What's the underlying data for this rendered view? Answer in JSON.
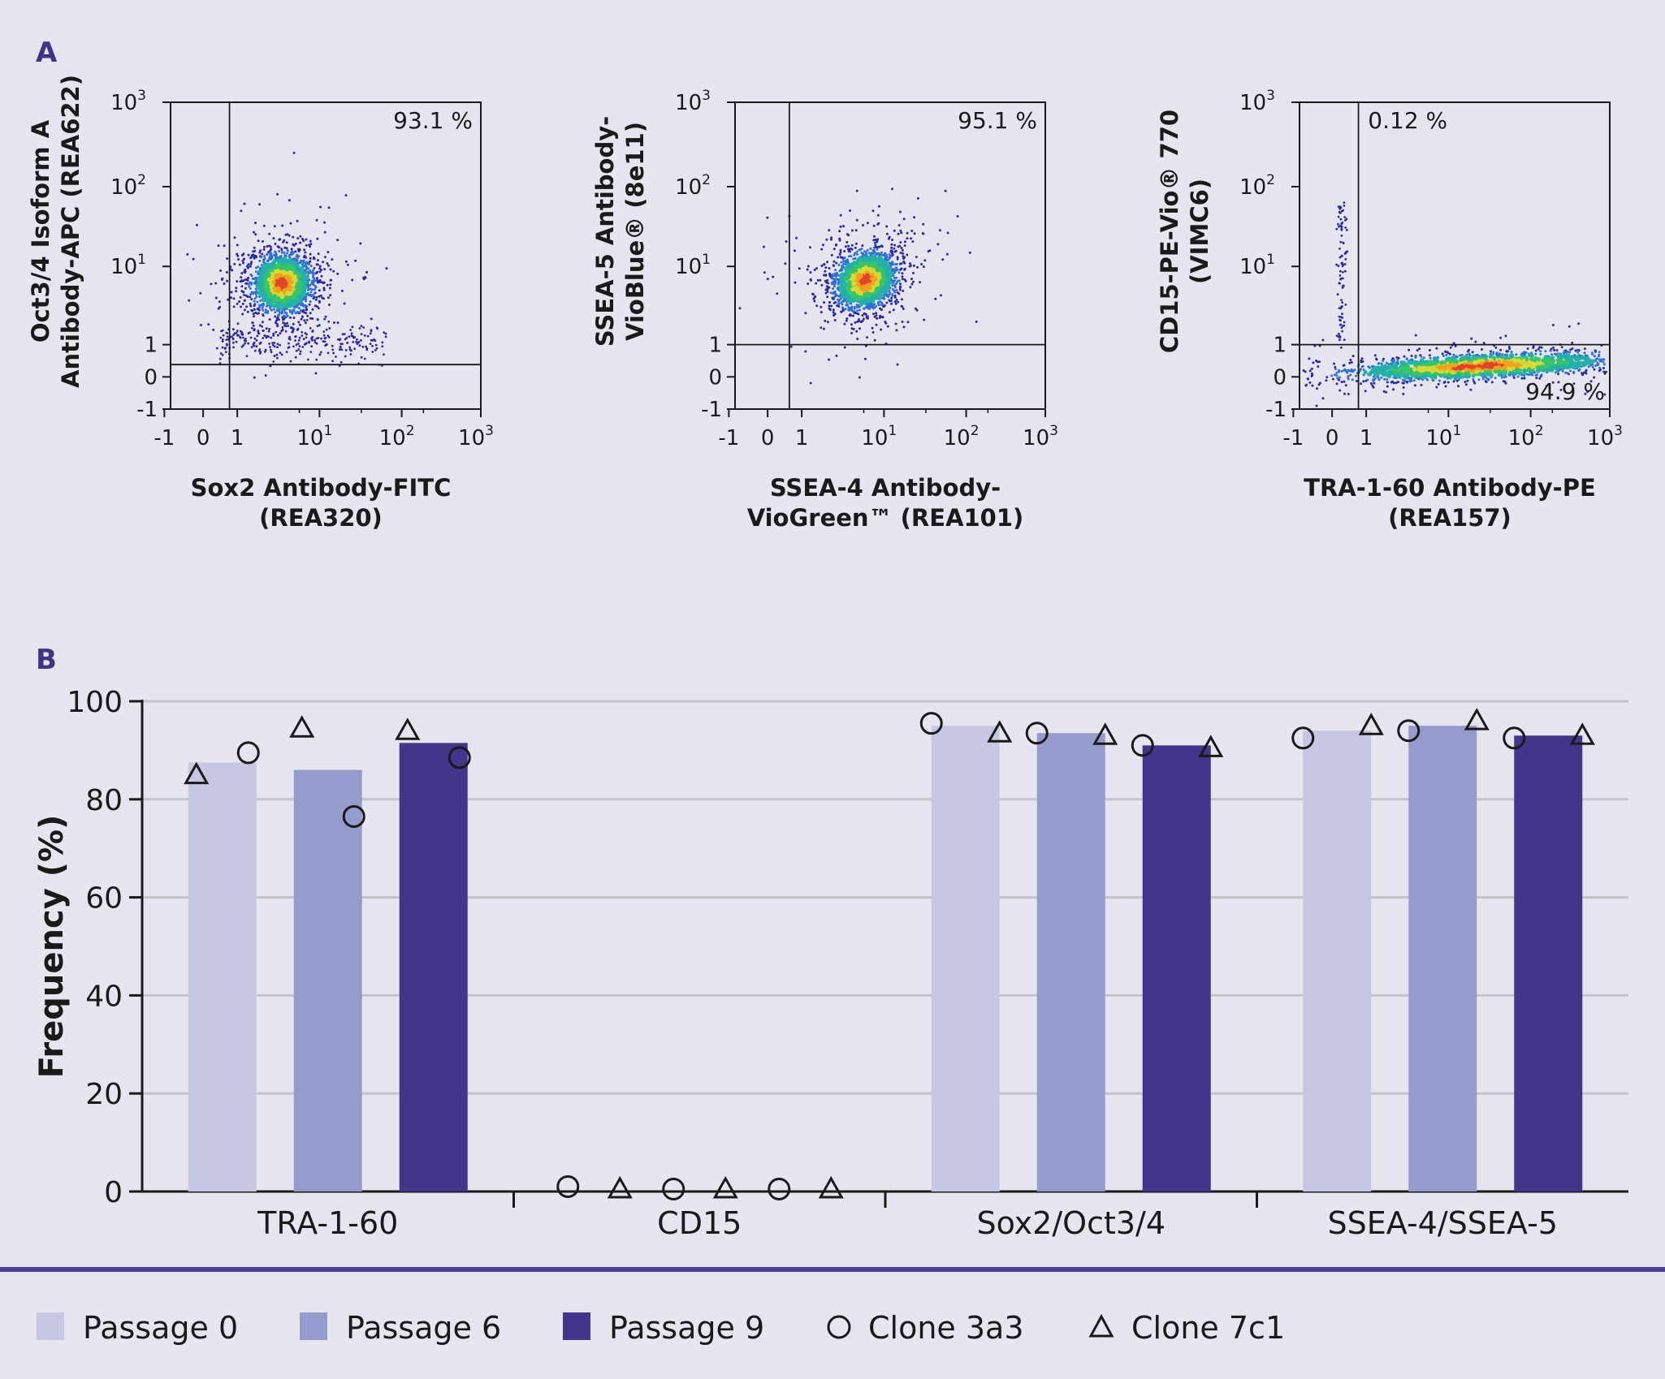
{
  "colors": {
    "background": "#e7e6f0",
    "accent": "#3d3587",
    "passage0": "#c6c8e3",
    "passage6": "#959bcd",
    "passage9": "#44358a",
    "gridline": "#c3c3c8"
  },
  "panel_a": {
    "label": "A",
    "tick_labels": {
      "x": [
        "-1",
        "0",
        "1",
        "10",
        "10",
        "10"
      ],
      "y": [
        "-1",
        "0",
        "1",
        "10",
        "10",
        "10"
      ],
      "exponents": [
        "1",
        "2",
        "3"
      ]
    },
    "plots": [
      {
        "y_title": [
          "Oct3/4 Isoform A",
          "Antibody-APC (REA622)"
        ],
        "x_title": [
          "Sox2 Antibody-FITC",
          "(REA320)"
        ],
        "quadrant_label": "93.1 %"
      },
      {
        "y_title": [
          "SSEA-5 Antibody-",
          "VioBlue® (8e11)"
        ],
        "x_title": [
          "SSEA-4 Antibody-",
          "VioGreen™ (REA101)"
        ],
        "quadrant_label": "95.1 %"
      },
      {
        "y_title": [
          "CD15-PE-Vio® 770",
          "(VIMC6)"
        ],
        "x_title": [
          "TRA-1-60 Antibody-PE",
          "(REA157)"
        ],
        "quadrant_label": "0.12 %",
        "quadrant_label_2": "94.9 %"
      }
    ]
  },
  "panel_b": {
    "label": "B"
  },
  "legend": {
    "passage0": "Passage 0",
    "passage6": "Passage 6",
    "passage9": "Passage 9",
    "clone_circle": "Clone 3a3",
    "clone_triangle": "Clone 7c1"
  },
  "chart_data": {
    "type": "bar",
    "title": "",
    "xlabel": "",
    "ylabel": "Frequency (%)",
    "ylim": [
      0,
      100
    ],
    "yticks": [
      0,
      20,
      40,
      60,
      80,
      100
    ],
    "categories": [
      "TRA-1-60",
      "CD15",
      "Sox2/Oct3/4",
      "SSEA-4/SSEA-5"
    ],
    "series": [
      {
        "name": "Passage 0",
        "values": [
          87.5,
          0,
          95,
          94
        ]
      },
      {
        "name": "Passage 6",
        "values": [
          86,
          0,
          93.5,
          95
        ]
      },
      {
        "name": "Passage 9",
        "values": [
          91.5,
          0,
          91,
          93
        ]
      }
    ],
    "markers": [
      {
        "name": "Clone 3a3",
        "symbol": "circle",
        "values": [
          [
            89.5,
            76.5,
            88.5
          ],
          [
            1,
            0.5,
            0.5
          ],
          [
            95.5,
            93.5,
            91
          ],
          [
            92.5,
            94,
            92.5
          ]
        ]
      },
      {
        "name": "Clone 7c1",
        "symbol": "triangle",
        "values": [
          [
            85,
            94.5,
            94
          ],
          [
            0.5,
            0.5,
            0.5
          ],
          [
            93.5,
            93,
            90.5
          ],
          [
            95,
            96,
            93
          ]
        ]
      }
    ],
    "grid": true
  }
}
